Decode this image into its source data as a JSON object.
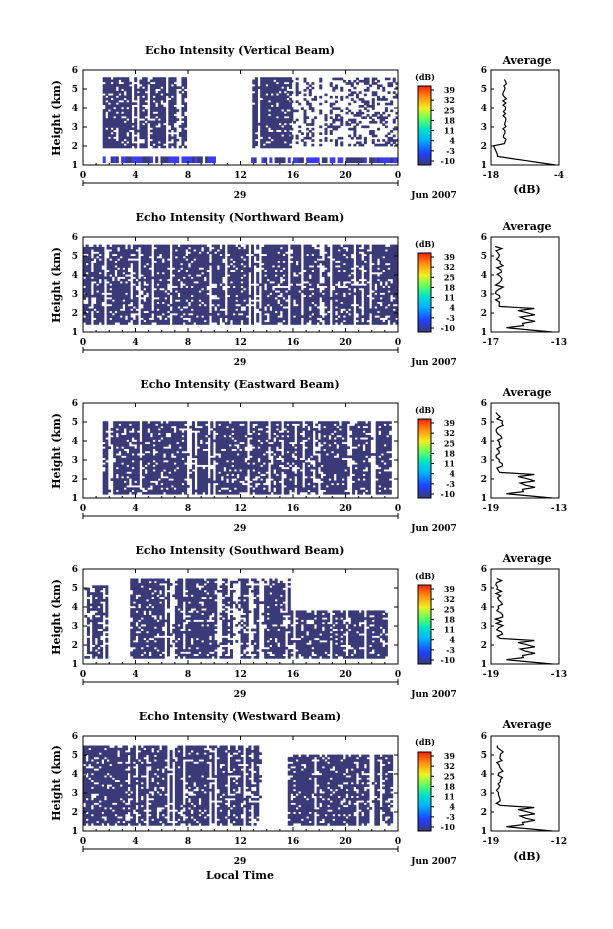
{
  "figure": {
    "xlabel": "Local Time",
    "date_label": "Jun 2007",
    "day_label": "29",
    "ylabel": "Height (km)",
    "cb_unit": "(dB)",
    "avg_title": "Average",
    "avg_xlabel": "(dB)",
    "colors": {
      "echo": "#3a3a78",
      "strong": "#3c3cf0",
      "axis": "#000000"
    }
  },
  "chart_data": [
    {
      "type": "heatmap",
      "title": "Echo Intensity (Vertical Beam)",
      "x_ticks": [
        "0",
        "4",
        "8",
        "12",
        "16",
        "20",
        "0"
      ],
      "xlim": [
        0,
        24
      ],
      "y_ticks": [
        "1",
        "2",
        "3",
        "4",
        "5",
        "6"
      ],
      "ylim": [
        1,
        6
      ],
      "colorbar": {
        "label": "(dB)",
        "ticks": [
          "39",
          "32",
          "25",
          "18",
          "11",
          "4",
          "-3",
          "-10"
        ],
        "range": [
          -10,
          39
        ]
      },
      "echo_blocks": [
        {
          "t": [
            1.5,
            7.8
          ],
          "h": [
            1.9,
            5.6
          ]
        },
        {
          "t": [
            12.9,
            15.8
          ],
          "h": [
            1.9,
            5.6
          ]
        },
        {
          "t": [
            15.8,
            24
          ],
          "h": [
            2.0,
            5.6
          ],
          "sparse": true
        }
      ],
      "low_band": [
        {
          "t": [
            1.5,
            10.1
          ],
          "h": [
            1.1,
            1.45
          ]
        },
        {
          "t": [
            12.8,
            24
          ],
          "h": [
            1.1,
            1.4
          ]
        }
      ],
      "average": {
        "title": "Average",
        "xlim": [
          -18,
          -4
        ],
        "x_ticks": [
          "-18",
          "-4"
        ],
        "y_ticks": [
          "1",
          "2",
          "3",
          "4",
          "5",
          "6"
        ],
        "xlabel": "(dB)"
      }
    },
    {
      "type": "heatmap",
      "title": "Echo Intensity (Northward Beam)",
      "x_ticks": [
        "0",
        "4",
        "8",
        "12",
        "16",
        "20",
        "0"
      ],
      "xlim": [
        0,
        24
      ],
      "y_ticks": [
        "1",
        "2",
        "3",
        "4",
        "5",
        "6"
      ],
      "ylim": [
        1,
        6
      ],
      "colorbar": {
        "label": "(dB)",
        "ticks": [
          "39",
          "32",
          "25",
          "18",
          "11",
          "4",
          "-3",
          "-10"
        ],
        "range": [
          -10,
          39
        ]
      },
      "echo_blocks": [
        {
          "t": [
            0,
            24
          ],
          "h": [
            1.4,
            5.5
          ]
        }
      ],
      "average": {
        "title": "Average",
        "xlim": [
          -17,
          -13
        ],
        "x_ticks": [
          "-17",
          "-13"
        ],
        "y_ticks": [
          "1",
          "2",
          "3",
          "4",
          "5",
          "6"
        ],
        "xlabel": ""
      }
    },
    {
      "type": "heatmap",
      "title": "Echo Intensity (Eastward Beam)",
      "x_ticks": [
        "0",
        "4",
        "8",
        "12",
        "16",
        "20",
        "0"
      ],
      "xlim": [
        0,
        24
      ],
      "y_ticks": [
        "1",
        "2",
        "3",
        "4",
        "5",
        "6"
      ],
      "ylim": [
        1,
        6
      ],
      "colorbar": {
        "label": "(dB)",
        "ticks": [
          "39",
          "32",
          "25",
          "18",
          "11",
          "4",
          "-3",
          "-10"
        ],
        "range": [
          -10,
          39
        ]
      },
      "echo_blocks": [
        {
          "t": [
            1.5,
            23.5
          ],
          "h": [
            1.2,
            5.0
          ]
        }
      ],
      "average": {
        "title": "Average",
        "xlim": [
          -19,
          -13
        ],
        "x_ticks": [
          "-19",
          "-13"
        ],
        "y_ticks": [
          "1",
          "2",
          "3",
          "4",
          "5",
          "6"
        ],
        "xlabel": ""
      }
    },
    {
      "type": "heatmap",
      "title": "Echo Intensity (Southward Beam)",
      "x_ticks": [
        "0",
        "4",
        "8",
        "12",
        "16",
        "20",
        "0"
      ],
      "xlim": [
        0,
        24
      ],
      "y_ticks": [
        "1",
        "2",
        "3",
        "4",
        "5",
        "6"
      ],
      "ylim": [
        1,
        6
      ],
      "colorbar": {
        "label": "(dB)",
        "ticks": [
          "39",
          "32",
          "25",
          "18",
          "11",
          "4",
          "-3",
          "-10"
        ],
        "range": [
          -10,
          39
        ]
      },
      "echo_blocks": [
        {
          "t": [
            0.1,
            1.9
          ],
          "h": [
            1.3,
            5.1
          ]
        },
        {
          "t": [
            3.6,
            15.8
          ],
          "h": [
            1.3,
            5.4
          ]
        },
        {
          "t": [
            15.8,
            23.2
          ],
          "h": [
            1.3,
            3.8
          ]
        }
      ],
      "average": {
        "title": "Average",
        "xlim": [
          -19,
          -13
        ],
        "x_ticks": [
          "-19",
          "-13"
        ],
        "y_ticks": [
          "1",
          "2",
          "3",
          "4",
          "5",
          "6"
        ],
        "xlabel": ""
      }
    },
    {
      "type": "heatmap",
      "title": "Echo Intensity (Westward Beam)",
      "x_ticks": [
        "0",
        "4",
        "8",
        "12",
        "16",
        "20",
        "0"
      ],
      "xlim": [
        0,
        24
      ],
      "y_ticks": [
        "1",
        "2",
        "3",
        "4",
        "5",
        "6"
      ],
      "ylim": [
        1,
        6
      ],
      "colorbar": {
        "label": "(dB)",
        "ticks": [
          "39",
          "32",
          "25",
          "18",
          "11",
          "4",
          "-3",
          "-10"
        ],
        "range": [
          -10,
          39
        ]
      },
      "echo_blocks": [
        {
          "t": [
            0,
            13.6
          ],
          "h": [
            1.3,
            5.5
          ]
        },
        {
          "t": [
            15.6,
            23.5
          ],
          "h": [
            1.3,
            5.0
          ]
        }
      ],
      "average": {
        "title": "Average",
        "xlim": [
          -19,
          -12
        ],
        "x_ticks": [
          "-19",
          "-12"
        ],
        "y_ticks": [
          "1",
          "2",
          "3",
          "4",
          "5",
          "6"
        ],
        "xlabel": "(dB)"
      }
    }
  ]
}
